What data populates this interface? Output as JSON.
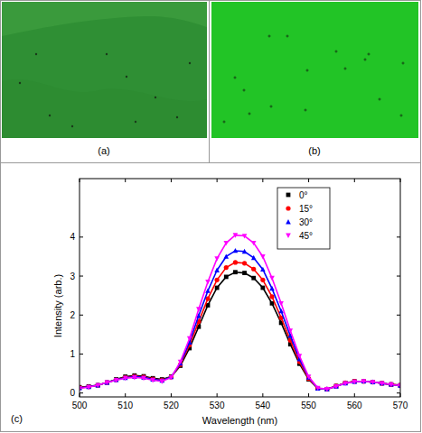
{
  "panels": [
    {
      "label": "(a)"
    },
    {
      "label": "(b)"
    },
    {
      "label": "(c)"
    }
  ],
  "chart_data": {
    "type": "line",
    "x_label": "Wavelength (nm)",
    "y_label": "Intensity (arb.)",
    "x": [
      500,
      502,
      504,
      506,
      508,
      510,
      512,
      514,
      516,
      518,
      520,
      522,
      524,
      526,
      528,
      530,
      532,
      534,
      536,
      538,
      540,
      542,
      544,
      546,
      548,
      550,
      552,
      554,
      556,
      558,
      560,
      562,
      564,
      566,
      568,
      570
    ],
    "xlim": [
      500,
      570
    ],
    "xticks": [
      500,
      510,
      520,
      530,
      540,
      550,
      560,
      570
    ],
    "ylim": [
      -0.1,
      5.5
    ],
    "yticks": [
      0,
      1,
      2,
      3,
      4
    ],
    "grid": false,
    "legend": "upper right",
    "series": [
      {
        "name": "0°",
        "color": "#000000",
        "marker": "square",
        "values": [
          0.15,
          0.17,
          0.2,
          0.27,
          0.35,
          0.42,
          0.45,
          0.43,
          0.38,
          0.35,
          0.42,
          0.7,
          1.15,
          1.7,
          2.25,
          2.7,
          2.98,
          3.1,
          3.08,
          2.95,
          2.7,
          2.3,
          1.8,
          1.25,
          0.75,
          0.35,
          0.12,
          0.1,
          0.18,
          0.26,
          0.3,
          0.3,
          0.28,
          0.25,
          0.22,
          0.2
        ]
      },
      {
        "name": "15°",
        "color": "#ff0000",
        "marker": "circle",
        "values": [
          0.14,
          0.16,
          0.2,
          0.27,
          0.34,
          0.4,
          0.43,
          0.41,
          0.36,
          0.33,
          0.41,
          0.73,
          1.23,
          1.83,
          2.42,
          2.9,
          3.22,
          3.35,
          3.33,
          3.18,
          2.9,
          2.47,
          1.93,
          1.35,
          0.8,
          0.37,
          0.12,
          0.1,
          0.18,
          0.26,
          0.3,
          0.3,
          0.28,
          0.25,
          0.22,
          0.2
        ]
      },
      {
        "name": "30°",
        "color": "#0000ff",
        "marker": "triangle-up",
        "values": [
          0.13,
          0.16,
          0.2,
          0.27,
          0.34,
          0.39,
          0.42,
          0.4,
          0.35,
          0.32,
          0.41,
          0.76,
          1.3,
          1.98,
          2.62,
          3.15,
          3.5,
          3.65,
          3.63,
          3.47,
          3.17,
          2.68,
          2.1,
          1.47,
          0.87,
          0.4,
          0.12,
          0.1,
          0.17,
          0.25,
          0.29,
          0.3,
          0.28,
          0.25,
          0.22,
          0.19
        ]
      },
      {
        "name": "45°",
        "color": "#ff00ff",
        "marker": "triangle-down",
        "values": [
          0.12,
          0.15,
          0.2,
          0.27,
          0.33,
          0.38,
          0.4,
          0.38,
          0.33,
          0.3,
          0.4,
          0.8,
          1.4,
          2.15,
          2.85,
          3.45,
          3.85,
          4.05,
          4.03,
          3.85,
          3.5,
          2.95,
          2.3,
          1.6,
          0.95,
          0.42,
          0.13,
          0.1,
          0.17,
          0.25,
          0.29,
          0.3,
          0.28,
          0.25,
          0.22,
          0.19
        ]
      }
    ]
  }
}
